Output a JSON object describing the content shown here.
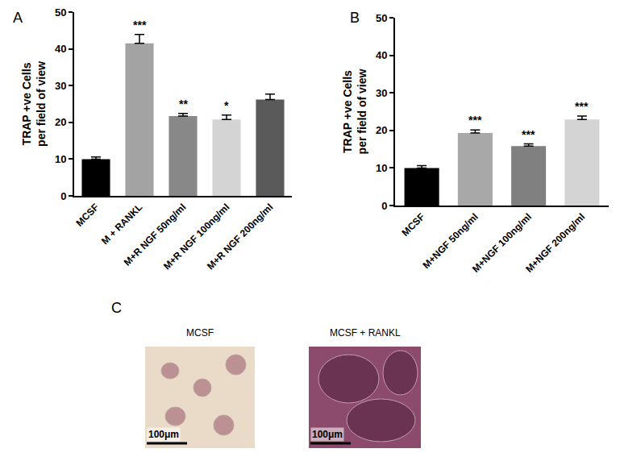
{
  "chart_data": [
    {
      "panel_label": "A",
      "type": "bar",
      "categories": [
        "MCSF",
        "M + RANKL",
        "M+R NGF 50ng/ml",
        "M+R NGF 100ng/ml",
        "M+R NGF 200ng/ml"
      ],
      "values": [
        10,
        41.5,
        21.7,
        20.8,
        26.2
      ],
      "errors": [
        0.6,
        2.4,
        0.7,
        1.2,
        1.5
      ],
      "significance": [
        null,
        "***",
        "**",
        "*",
        null
      ],
      "colors": [
        "#000000",
        "#a3a3a3",
        "#888888",
        "#d4d4d4",
        "#5a5a5a"
      ],
      "y_label": "TRAP +ve Cells\nper field of view",
      "ylim": [
        0,
        50
      ],
      "yticks": [
        0,
        10,
        20,
        30,
        40,
        50
      ],
      "grid": false
    },
    {
      "panel_label": "B",
      "type": "bar",
      "categories": [
        "MCSF",
        "M+NGF 50ng/ml",
        "M+NGF 100ng/ml",
        "M+NGF 200ng/ml"
      ],
      "values": [
        10,
        19.3,
        15.8,
        22.9
      ],
      "errors": [
        0.6,
        0.8,
        0.6,
        0.9
      ],
      "significance": [
        null,
        "***",
        "***",
        "***"
      ],
      "colors": [
        "#000000",
        "#a8a8a8",
        "#808080",
        "#d4d4d4"
      ],
      "y_label": "TRAP +ve Cells\nper field of view",
      "ylim": [
        0,
        50
      ],
      "yticks": [
        0,
        10,
        20,
        30,
        40,
        50
      ],
      "grid": false
    }
  ],
  "panel_c": {
    "label": "C",
    "images": [
      {
        "title": "MCSF",
        "scale_bar": "100μm"
      },
      {
        "title": "MCSF + RANKL",
        "scale_bar": "100μm"
      }
    ]
  }
}
